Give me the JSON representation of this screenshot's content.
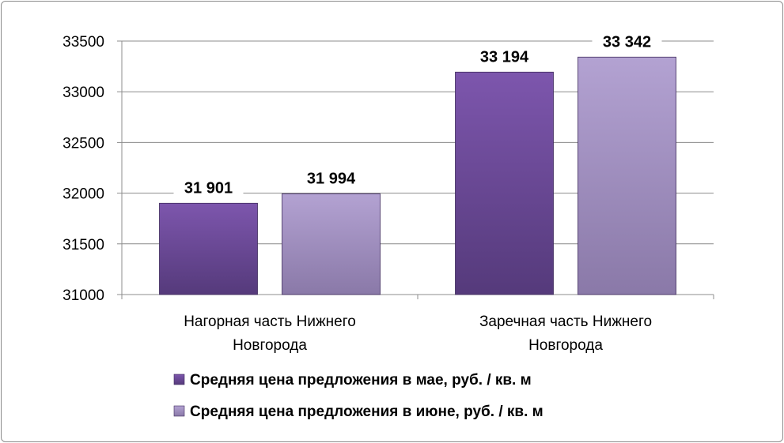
{
  "chart_data": {
    "type": "bar",
    "categories": [
      "Нагорная часть Нижнего Новгорода",
      "Заречная часть Нижнего Новгорода"
    ],
    "category_lines": [
      [
        "Нагорная часть Нижнего",
        "Новгорода"
      ],
      [
        "Заречная часть Нижнего",
        "Новгорода"
      ]
    ],
    "series": [
      {
        "name": "Средняя цена предложения в мае, руб. / кв. м",
        "values": [
          31901,
          33194
        ],
        "labels": [
          "31 901",
          "33 194"
        ],
        "color": "#6f4a9c"
      },
      {
        "name": "Средняя цена предложения в июне, руб. / кв. м",
        "values": [
          31994,
          33342
        ],
        "labels": [
          "31 994",
          "33 342"
        ],
        "color": "#a693c7"
      }
    ],
    "ylim": [
      31000,
      33500
    ],
    "yticks": [
      31000,
      31500,
      32000,
      32500,
      33000,
      33500
    ],
    "ytick_labels": [
      "31000",
      "31500",
      "32000",
      "32500",
      "33000",
      "33500"
    ],
    "grid": true,
    "legend_position": "bottom"
  }
}
